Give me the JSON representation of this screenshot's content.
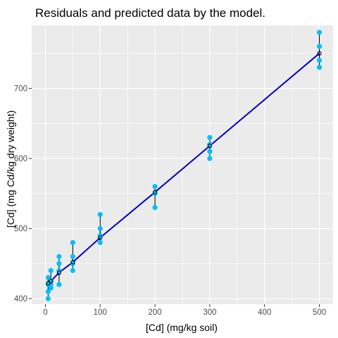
{
  "chart_data": {
    "type": "scatter",
    "title": "Residuals and predicted data by the model.",
    "xlabel": "[Cd] (mg/kg soil)",
    "ylabel": "[Cd] (mg Cd/kg dry weight)",
    "xlim": [
      -25,
      525
    ],
    "ylim": [
      392,
      790
    ],
    "xticks": [
      0,
      100,
      200,
      300,
      400,
      500
    ],
    "yticks": [
      400,
      500,
      600,
      700
    ],
    "grid": true,
    "legend": "none",
    "colors": {
      "panel": "#ebebeb",
      "grid_major": "#ffffff",
      "points": "#00bfff",
      "fit_line": "#0000cd",
      "predicted": "#000000",
      "residual_segment": "#000000"
    },
    "series": [
      {
        "values_type": "observed",
        "x": [
          5,
          5,
          5,
          5,
          10,
          10,
          10,
          10,
          25,
          25,
          25,
          25,
          50,
          50,
          50,
          50,
          100,
          100,
          100,
          100,
          200,
          200,
          200,
          300,
          300,
          300,
          300,
          500,
          500,
          500,
          500
        ],
        "y": [
          430,
          420,
          410,
          400,
          440,
          425,
          420,
          415,
          460,
          450,
          440,
          420,
          480,
          460,
          450,
          440,
          520,
          500,
          490,
          480,
          560,
          550,
          530,
          630,
          620,
          610,
          600,
          780,
          760,
          740,
          730
        ]
      },
      {
        "values_type": "predicted",
        "x": [
          5,
          10,
          25,
          50,
          100,
          200,
          300,
          500
        ],
        "y": [
          422,
          425,
          437,
          452,
          487,
          552,
          618,
          750
        ]
      }
    ],
    "fit_line": {
      "x": [
        5,
        10,
        25,
        50,
        100,
        200,
        300,
        500
      ],
      "y": [
        422,
        425,
        437,
        452,
        487,
        552,
        618,
        750
      ]
    }
  }
}
